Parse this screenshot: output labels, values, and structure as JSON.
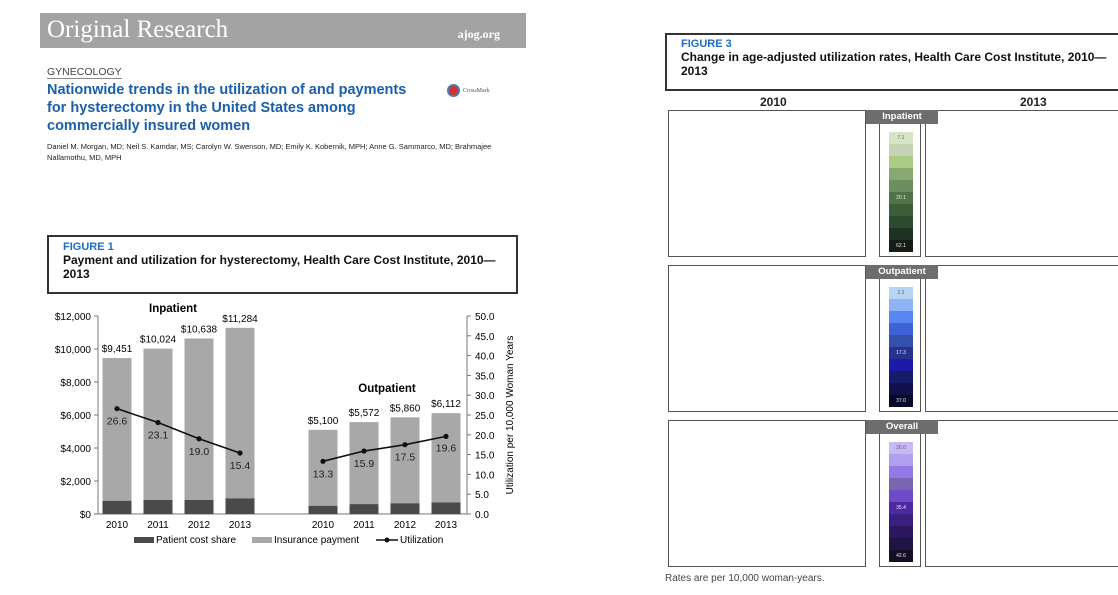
{
  "header": {
    "journal_section": "Original Research",
    "site": "ajog.org"
  },
  "article": {
    "category": "GYNECOLOGY",
    "title": "Nationwide trends in the utilization of and payments for hysterectomy in the United States among commercially insured women",
    "crossmark": "CrossMark",
    "authors": "Daniel M. Morgan, MD; Neil S. Kamdar, MS; Carolyn W. Swenson, MD; Emily K. Kobernik, MPH; Anne G. Sammarco, MD; Brahmajee Nallamothu, MD, MPH"
  },
  "figure1": {
    "label": "FIGURE 1",
    "title": "Payment and utilization for hysterectomy, Health Care Cost Institute, 2010—2013"
  },
  "chart_data": {
    "type": "bar",
    "groups": [
      "Inpatient",
      "Outpatient"
    ],
    "categories": [
      "2010",
      "2011",
      "2012",
      "2013"
    ],
    "y_left": {
      "ticks": [
        "$0",
        "$2,000",
        "$4,000",
        "$6,000",
        "$8,000",
        "$10,000",
        "$12,000"
      ],
      "range": [
        0,
        12000
      ]
    },
    "y_right": {
      "label": "Utilization per 10,000 Woman Years",
      "ticks": [
        "0.0",
        "5.0",
        "10.0",
        "15.0",
        "20.0",
        "25.0",
        "30.0",
        "35.0",
        "40.0",
        "45.0",
        "50.0"
      ],
      "range": [
        0,
        50
      ]
    },
    "series": [
      {
        "name": "Patient cost share",
        "type": "stacked-bar",
        "color": "#4a4a4a",
        "inpatient": [
          800,
          850,
          850,
          950
        ],
        "outpatient": [
          500,
          600,
          650,
          700
        ]
      },
      {
        "name": "Insurance payment",
        "type": "stacked-bar",
        "color": "#a8a8a8",
        "inpatient": [
          8651,
          9174,
          9788,
          10334
        ],
        "outpatient": [
          4600,
          4972,
          5210,
          5412
        ]
      },
      {
        "name": "Utilization",
        "type": "line",
        "color": "#111111",
        "inpatient": [
          26.6,
          23.1,
          19.0,
          15.4
        ],
        "outpatient": [
          13.3,
          15.9,
          17.5,
          19.6
        ]
      }
    ],
    "total_labels": {
      "inpatient": [
        "$9,451",
        "$10,024",
        "$10,638",
        "$11,284"
      ],
      "outpatient": [
        "$5,100",
        "$5,572",
        "$5,860",
        "$6,112"
      ]
    },
    "totals": {
      "inpatient": [
        9451,
        10024,
        10638,
        11284
      ],
      "outpatient": [
        5100,
        5572,
        5860,
        6112
      ]
    },
    "legend_position": "bottom"
  },
  "figure3": {
    "label": "FIGURE 3",
    "title": "Change in age-adjusted utilization rates, Health Care Cost Institute, 2010—2013",
    "years": [
      "2010",
      "2013"
    ],
    "panels": [
      {
        "name": "Inpatient",
        "legend": [
          "7.1",
          "20.1",
          "62.1"
        ],
        "colors": [
          "#d6e4c6",
          "#c3d3b3",
          "#a9cc80",
          "#86a972",
          "#6b8f5e",
          "#4e7447",
          "#3b5e39",
          "#2c4a2d",
          "#1f3222",
          "#141c16"
        ]
      },
      {
        "name": "Outpatient",
        "legend": [
          "2.3",
          "17.3",
          "37.0"
        ],
        "colors": [
          "#b8d4f4",
          "#8fb4f6",
          "#5a86f2",
          "#3f63d6",
          "#3550aa",
          "#26328c",
          "#1d1aa8",
          "#181a6a",
          "#10104a",
          "#080828"
        ]
      },
      {
        "name": "Overall",
        "legend": [
          "26.0",
          "35.4",
          "42.6"
        ],
        "colors": [
          "#c8b8f4",
          "#b0a0f0",
          "#9378e6",
          "#7a66b0",
          "#6e4cc8",
          "#4d2aa0",
          "#3a1e80",
          "#2c1660",
          "#201444",
          "#150c26"
        ]
      }
    ],
    "footnote": "Rates are per 10,000 woman-years."
  }
}
